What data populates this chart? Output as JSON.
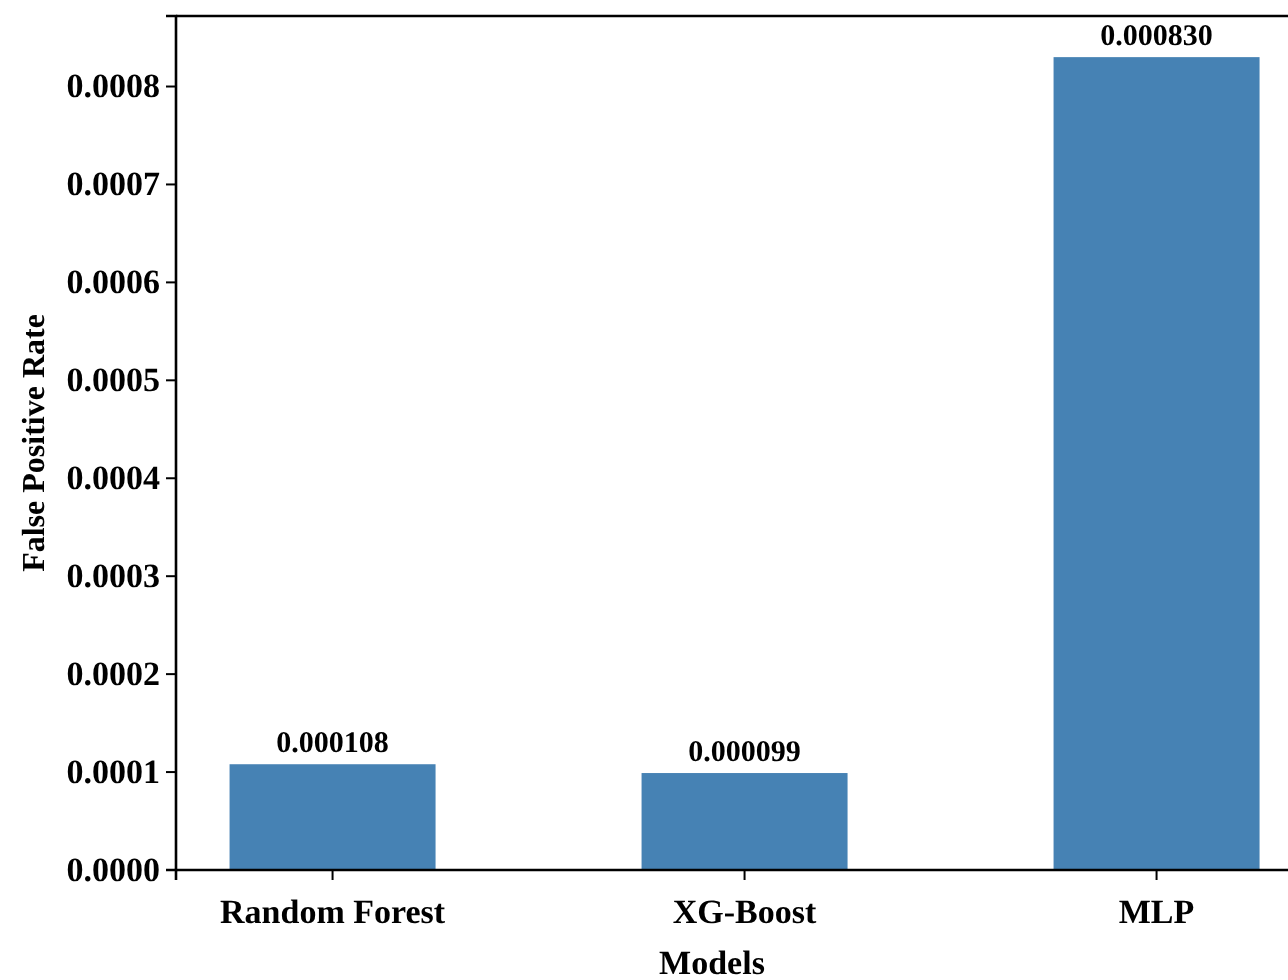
{
  "chart_data": {
    "type": "bar",
    "xlabel": "Models",
    "ylabel": "False Positive Rate",
    "categories": [
      "Random Forest",
      "XG-Boost",
      "MLP"
    ],
    "values": [
      0.000108,
      9.9e-05,
      0.00083
    ],
    "color": "#4682b4",
    "value_labels": [
      "0.000108",
      "0.000099",
      "0.000830"
    ],
    "ylim": [
      0,
      0.000872
    ],
    "yticks": [
      {
        "value": 0,
        "label": "0.0000"
      },
      {
        "value": 0.0001,
        "label": "0.0001"
      },
      {
        "value": 0.0002,
        "label": "0.0002"
      },
      {
        "value": 0.0003,
        "label": "0.0003"
      },
      {
        "value": 0.0004,
        "label": "0.0004"
      },
      {
        "value": 0.0005,
        "label": "0.0005"
      },
      {
        "value": 0.0006,
        "label": "0.0006"
      },
      {
        "value": 0.0007,
        "label": "0.0007"
      },
      {
        "value": 0.0008,
        "label": "0.0008"
      }
    ],
    "grid": false
  }
}
